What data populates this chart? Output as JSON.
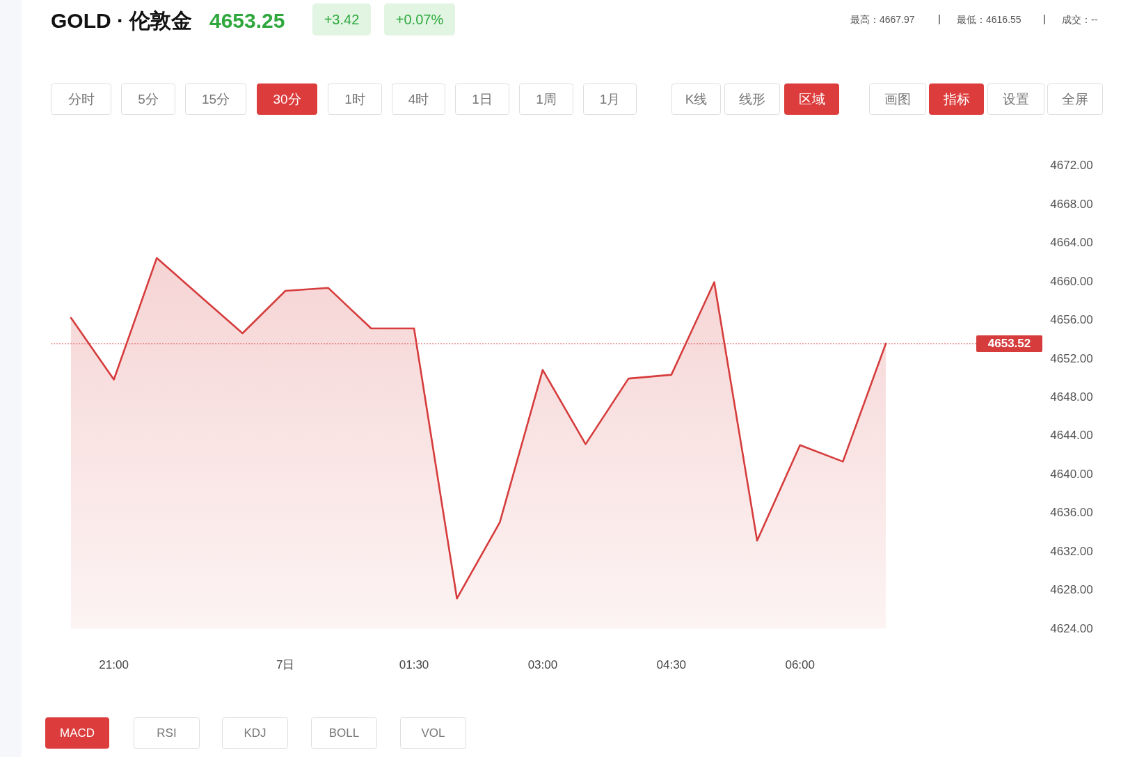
{
  "chart_data": {
    "type": "area",
    "title": "GOLD · 伦敦金",
    "categories": [
      null,
      "21:00",
      null,
      null,
      null,
      "7日",
      null,
      null,
      "01:30",
      null,
      null,
      "03:00",
      null,
      null,
      "04:30",
      null,
      null,
      "06:00",
      null,
      null,
      null,
      null,
      null
    ],
    "values": [
      4656.2,
      4649.8,
      4662.4,
      4658.5,
      4654.6,
      4659.0,
      4659.3,
      4655.1,
      4655.1,
      4627.1,
      4635.0,
      4650.8,
      4643.1,
      4649.9,
      4650.3,
      4659.9,
      4633.1,
      4643.0,
      4641.3,
      4653.52,
      null,
      null,
      null
    ],
    "color": "#d63c3c",
    "ylim": [
      4624,
      4672
    ],
    "yticks": [
      {
        "value": 4624,
        "label": "4624.00"
      },
      {
        "value": 4628,
        "label": "4628.00"
      },
      {
        "value": 4632,
        "label": "4632.00"
      },
      {
        "value": 4636,
        "label": "4636.00"
      },
      {
        "value": 4640,
        "label": "4640.00"
      },
      {
        "value": 4644,
        "label": "4644.00"
      },
      {
        "value": 4648,
        "label": "4648.00"
      },
      {
        "value": 4652,
        "label": "4652.00"
      },
      {
        "value": 4656,
        "label": "4656.00"
      },
      {
        "value": 4660,
        "label": "4660.00"
      },
      {
        "value": 4664,
        "label": "4664.00"
      },
      {
        "value": 4668,
        "label": "4668.00"
      },
      {
        "value": 4672,
        "label": "4672.00"
      }
    ],
    "ref_lines": [
      {
        "axis": "y",
        "value": 4653.52,
        "label": "4653.52",
        "color": "#d63c3c",
        "line_style": "dotted"
      }
    ],
    "annotations": [
      "4653.25",
      "+3.42",
      "+0.07%",
      "最高：4667.97",
      "最低：4616.55",
      "成交：--",
      "分时",
      "5分",
      "15分",
      "30分",
      "1时",
      "4时",
      "1日",
      "1周",
      "1月",
      "K线",
      "线形",
      "区域",
      "画图",
      "指标",
      "设置",
      "全屏",
      "MACD",
      "RSI",
      "KDJ",
      "BOLL",
      "VOL"
    ]
  }
}
